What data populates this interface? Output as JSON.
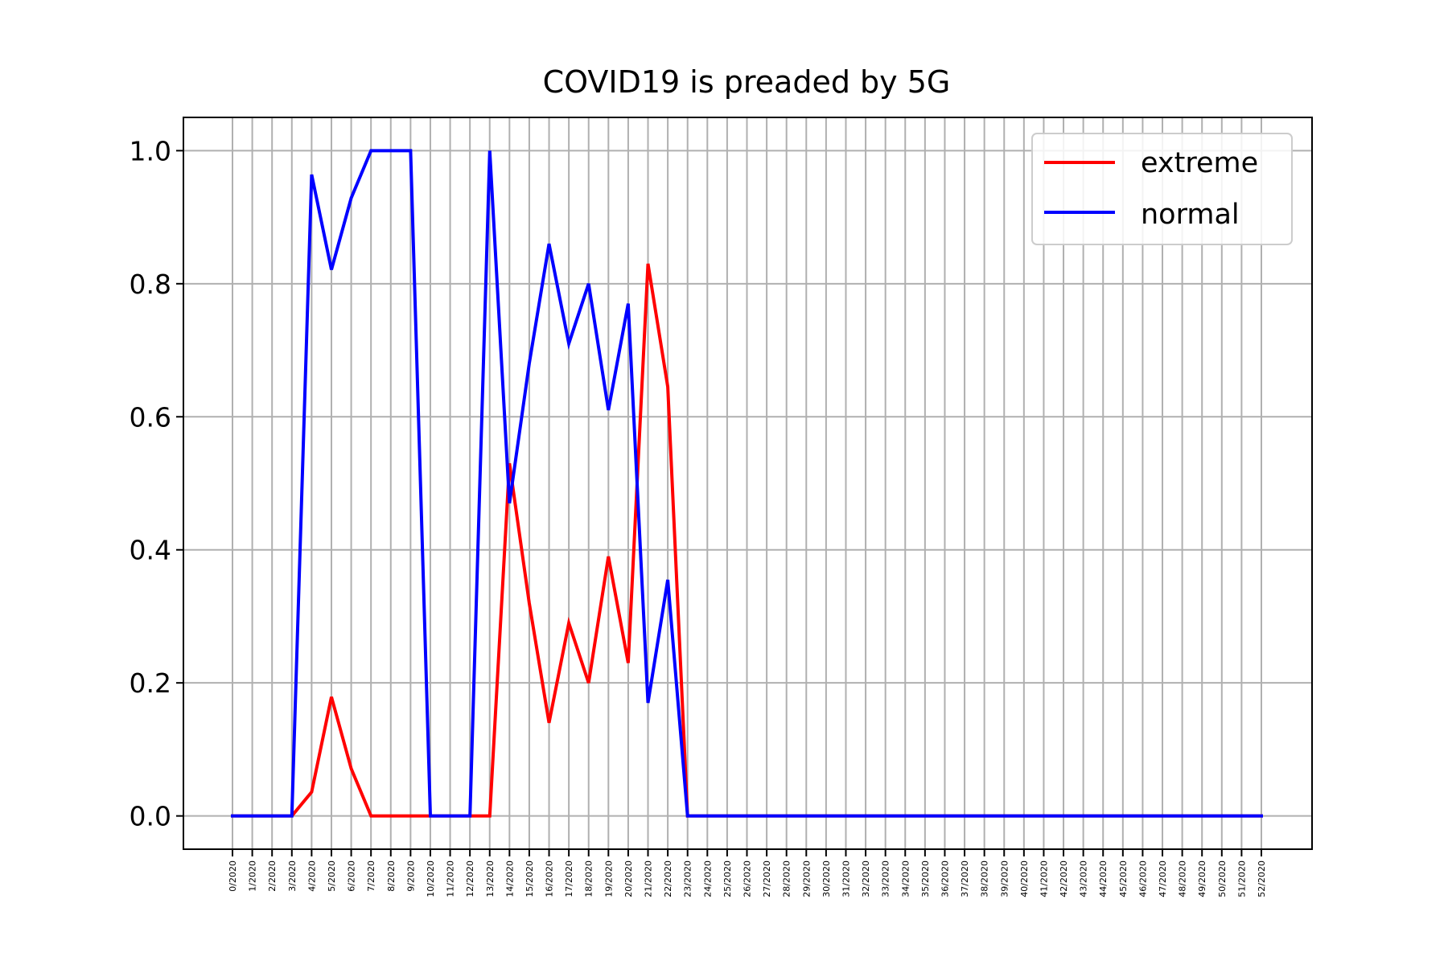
{
  "chart_data": {
    "type": "line",
    "title": "COVID19 is preaded by 5G",
    "xlabel": "",
    "ylabel": "",
    "ylim": [
      -0.05,
      1.05
    ],
    "yticks": [
      "0.0",
      "0.2",
      "0.4",
      "0.6",
      "0.8",
      "1.0"
    ],
    "grid": true,
    "legend_position": "top-right",
    "categories": [
      "0/2020",
      "1/2020",
      "2/2020",
      "3/2020",
      "4/2020",
      "5/2020",
      "6/2020",
      "7/2020",
      "8/2020",
      "9/2020",
      "10/2020",
      "11/2020",
      "12/2020",
      "13/2020",
      "14/2020",
      "15/2020",
      "16/2020",
      "17/2020",
      "18/2020",
      "19/2020",
      "20/2020",
      "21/2020",
      "22/2020",
      "23/2020",
      "24/2020",
      "25/2020",
      "26/2020",
      "27/2020",
      "28/2020",
      "29/2020",
      "30/2020",
      "31/2020",
      "32/2020",
      "33/2020",
      "34/2020",
      "35/2020",
      "36/2020",
      "37/2020",
      "38/2020",
      "39/2020",
      "40/2020",
      "41/2020",
      "42/2020",
      "43/2020",
      "44/2020",
      "45/2020",
      "46/2020",
      "47/2020",
      "48/2020",
      "49/2020",
      "50/2020",
      "51/2020",
      "52/2020"
    ],
    "series": [
      {
        "name": "extreme",
        "color": "#ff0000",
        "values": [
          0,
          0,
          0,
          0,
          0.036,
          0.179,
          0.071,
          0,
          0,
          0,
          0,
          0,
          0,
          0,
          0.53,
          0.32,
          0.14,
          0.29,
          0.2,
          0.39,
          0.23,
          0.83,
          0.645,
          0,
          0,
          0,
          0,
          0,
          0,
          0,
          0,
          0,
          0,
          0,
          0,
          0,
          0,
          0,
          0,
          0,
          0,
          0,
          0,
          0,
          0,
          0,
          0,
          0,
          0,
          0,
          0,
          0,
          0
        ]
      },
      {
        "name": "normal",
        "color": "#0000ff",
        "values": [
          0,
          0,
          0,
          0,
          0.964,
          0.821,
          0.929,
          1.0,
          1.0,
          1.0,
          0,
          0,
          0,
          1.0,
          0.47,
          0.68,
          0.86,
          0.71,
          0.8,
          0.61,
          0.77,
          0.17,
          0.355,
          0,
          0,
          0,
          0,
          0,
          0,
          0,
          0,
          0,
          0,
          0,
          0,
          0,
          0,
          0,
          0,
          0,
          0,
          0,
          0,
          0,
          0,
          0,
          0,
          0,
          0,
          0,
          0,
          0,
          0
        ]
      }
    ]
  }
}
